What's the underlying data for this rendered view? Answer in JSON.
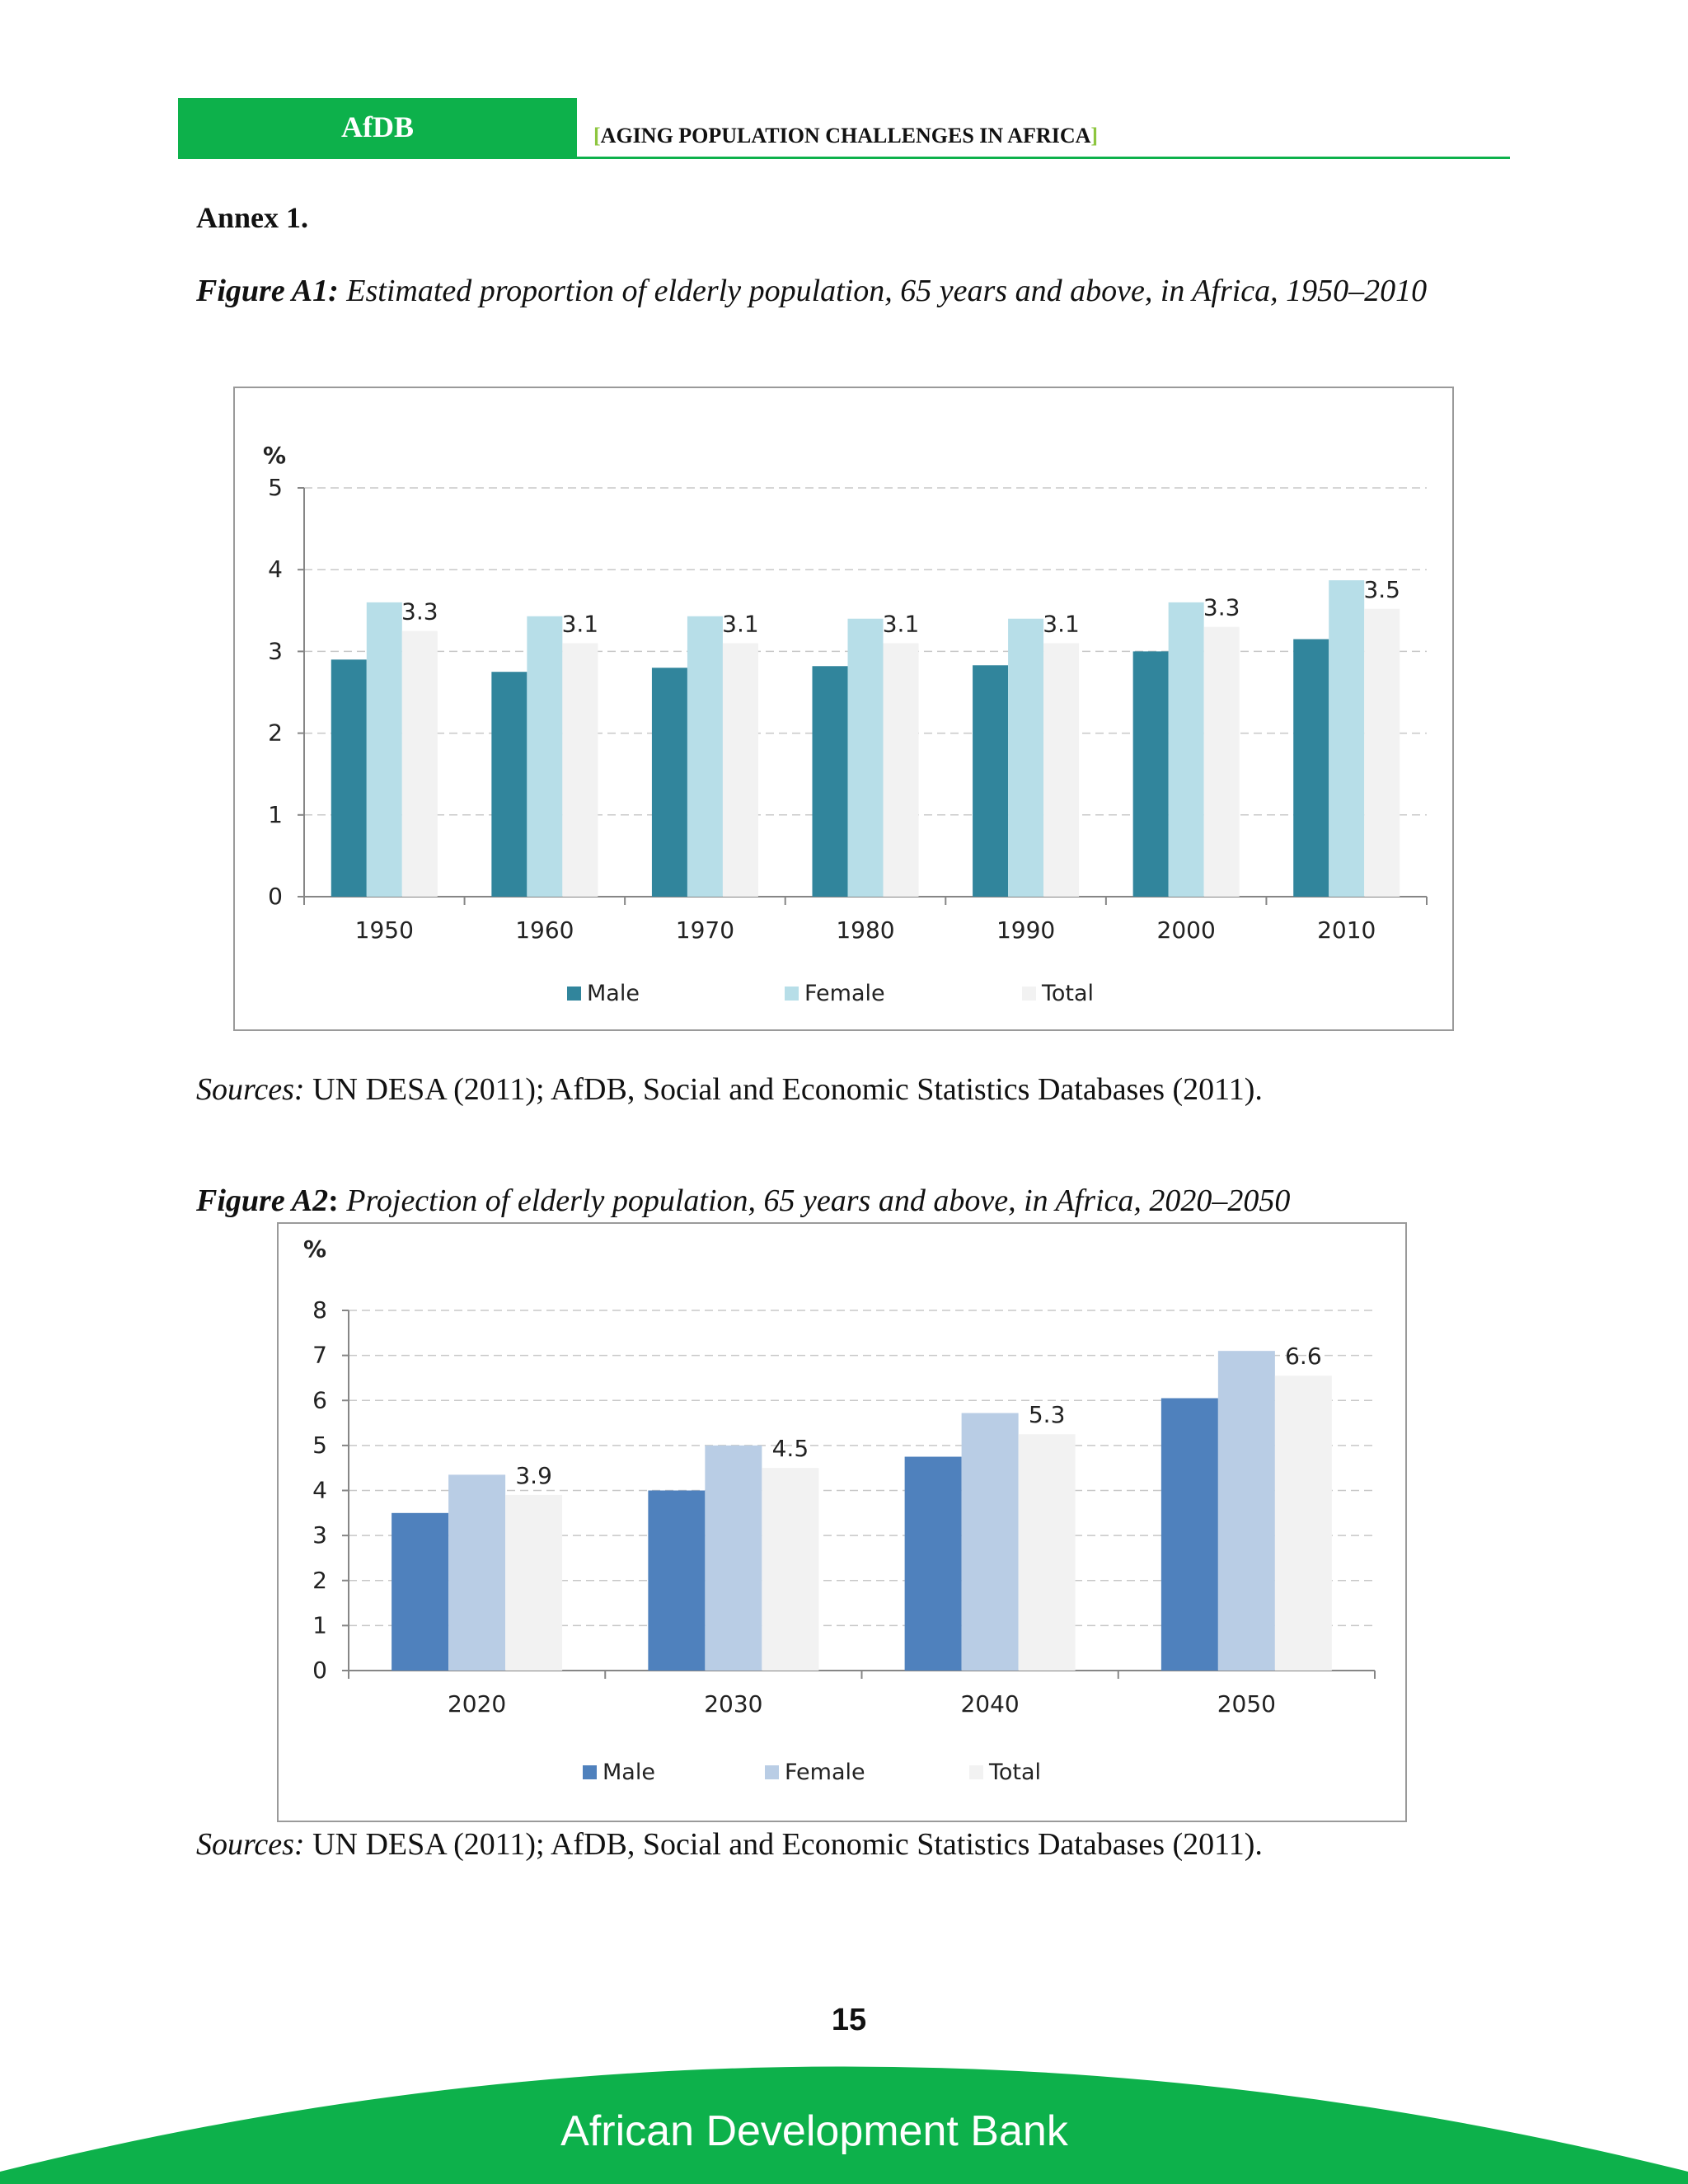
{
  "header": {
    "org": "AfDB",
    "title": "AGING POPULATION CHALLENGES IN AFRICA",
    "bracket_open": "[",
    "bracket_close": "]"
  },
  "annex_title": "Annex 1.",
  "figure1": {
    "label": "Figure A1:",
    "caption": "Estimated proportion of elderly population, 65 years and above, in Africa, 1950–2010",
    "sources_label": "Sources:",
    "sources_text": "UN DESA (2011); AfDB, Social and Economic Statistics Databases (2011)."
  },
  "figure2": {
    "label": "Figure A2",
    "colon": ":",
    "caption": "Projection of elderly population, 65 years and above, in Africa, 2020–2050",
    "sources_label": "Sources:",
    "sources_text": "UN DESA (2011); AfDB, Social and Economic Statistics Databases (2011)."
  },
  "chart_data": [
    {
      "type": "bar",
      "title": "",
      "ylabel": "%",
      "xlabel": "",
      "categories": [
        "1950",
        "1960",
        "1970",
        "1980",
        "1990",
        "2000",
        "2010"
      ],
      "series": [
        {
          "name": "Male",
          "values": [
            2.9,
            2.75,
            2.8,
            2.82,
            2.83,
            3.0,
            3.15
          ],
          "color": "#31859c"
        },
        {
          "name": "Female",
          "values": [
            3.6,
            3.43,
            3.43,
            3.4,
            3.4,
            3.6,
            3.87
          ],
          "color": "#b7dee8"
        },
        {
          "name": "Total",
          "values": [
            3.25,
            3.1,
            3.1,
            3.1,
            3.1,
            3.3,
            3.52
          ],
          "color": "#f2f2f2"
        }
      ],
      "data_labels": [
        "3.3",
        "3.1",
        "3.1",
        "3.1",
        "3.1",
        "3.3",
        "3.5"
      ],
      "ylim": [
        0,
        5
      ],
      "yticks": [
        "0",
        "1",
        "2",
        "3",
        "4",
        "5"
      ],
      "grid": true,
      "legend": "bottom"
    },
    {
      "type": "bar",
      "title": "",
      "ylabel": "%",
      "xlabel": "",
      "categories": [
        "2020",
        "2030",
        "2040",
        "2050"
      ],
      "series": [
        {
          "name": "Male",
          "values": [
            3.5,
            4.0,
            4.75,
            6.05
          ],
          "color": "#4f81bd"
        },
        {
          "name": "Female",
          "values": [
            4.35,
            5.0,
            5.72,
            7.1
          ],
          "color": "#b9cde5"
        },
        {
          "name": "Total",
          "values": [
            3.9,
            4.5,
            5.25,
            6.55
          ],
          "color": "#f2f2f2"
        }
      ],
      "data_labels": [
        "3.9",
        "4.5",
        "5.3",
        "6.6"
      ],
      "ylim": [
        0,
        8
      ],
      "yticks": [
        "0",
        "1",
        "2",
        "3",
        "4",
        "5",
        "6",
        "7",
        "8"
      ],
      "grid": true,
      "legend": "bottom"
    }
  ],
  "page_number": "15",
  "footer": "African Development Bank",
  "colors": {
    "brand_green": "#0db14b",
    "accent_green": "#8dc63f"
  }
}
